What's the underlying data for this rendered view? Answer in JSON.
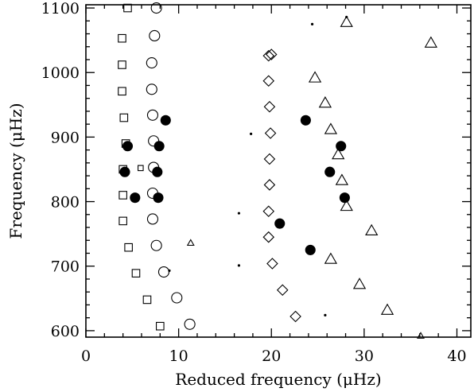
{
  "chart_data": {
    "type": "scatter",
    "title": "",
    "xlabel": "Reduced frequency (μHz)",
    "ylabel": "Frequency (μHz)",
    "xlim": [
      0,
      41.5
    ],
    "ylim": [
      590,
      1105
    ],
    "xticks": [
      0,
      10,
      20,
      30,
      40
    ],
    "yticks": [
      600,
      700,
      800,
      900,
      1000,
      1100
    ],
    "xtick_labels": [
      "0",
      "10",
      "20",
      "30",
      "40"
    ],
    "ytick_labels": [
      "600",
      "700",
      "800",
      "900",
      "1000",
      "1100"
    ],
    "grid": false,
    "legend": "none",
    "series": [
      {
        "marker": "square-open",
        "points": [
          [
            4.5,
            1100
          ],
          [
            3.9,
            1053
          ],
          [
            3.9,
            1012
          ],
          [
            3.9,
            971
          ],
          [
            4.1,
            930
          ],
          [
            4.3,
            890
          ],
          [
            4.0,
            850
          ],
          [
            4.0,
            810
          ],
          [
            4.0,
            770
          ],
          [
            4.6,
            729
          ],
          [
            5.4,
            689
          ],
          [
            6.6,
            648
          ],
          [
            8.0,
            607
          ]
        ]
      },
      {
        "marker": "square-open-small",
        "points": [
          [
            5.9,
            852
          ]
        ]
      },
      {
        "marker": "circle-open",
        "points": [
          [
            7.6,
            1100
          ],
          [
            7.4,
            1057
          ],
          [
            7.1,
            1015
          ],
          [
            7.1,
            974
          ],
          [
            7.2,
            934
          ],
          [
            7.3,
            894
          ],
          [
            7.3,
            853
          ],
          [
            7.2,
            813
          ],
          [
            7.2,
            773
          ],
          [
            7.6,
            732
          ],
          [
            8.4,
            691
          ],
          [
            9.8,
            651
          ],
          [
            11.2,
            610
          ]
        ]
      },
      {
        "marker": "circle-filled",
        "points": [
          [
            8.6,
            926
          ],
          [
            4.5,
            886
          ],
          [
            7.9,
            886
          ],
          [
            4.2,
            846
          ],
          [
            7.7,
            846
          ],
          [
            5.3,
            806
          ],
          [
            7.8,
            806
          ],
          [
            23.7,
            926
          ],
          [
            27.5,
            886
          ],
          [
            26.3,
            846
          ],
          [
            27.9,
            806
          ],
          [
            20.9,
            766
          ],
          [
            24.2,
            725
          ]
        ]
      },
      {
        "marker": "diamond-open",
        "points": [
          [
            20.0,
            1028
          ],
          [
            19.7,
            1026
          ],
          [
            19.7,
            987
          ],
          [
            19.8,
            947
          ],
          [
            19.9,
            906
          ],
          [
            19.8,
            866
          ],
          [
            19.8,
            826
          ],
          [
            19.7,
            785
          ],
          [
            19.7,
            745
          ],
          [
            20.1,
            704
          ],
          [
            21.2,
            663
          ],
          [
            22.6,
            622
          ]
        ]
      },
      {
        "marker": "triangle-open",
        "points": [
          [
            28.1,
            1078
          ],
          [
            24.7,
            992
          ],
          [
            25.8,
            953
          ],
          [
            26.4,
            912
          ],
          [
            27.2,
            873
          ],
          [
            27.6,
            833
          ],
          [
            28.1,
            793
          ],
          [
            30.8,
            755
          ],
          [
            26.4,
            711
          ],
          [
            29.5,
            672
          ],
          [
            32.5,
            632
          ],
          [
            37.2,
            1046
          ]
        ]
      },
      {
        "marker": "triangle-open-small",
        "points": [
          [
            11.3,
            736
          ],
          [
            36.1,
            592
          ]
        ]
      },
      {
        "marker": "dot-small",
        "points": [
          [
            24.4,
            1075
          ],
          [
            28.1,
            1086
          ],
          [
            17.8,
            905
          ],
          [
            16.5,
            782
          ],
          [
            16.5,
            701
          ],
          [
            9.0,
            693
          ],
          [
            25.8,
            624
          ]
        ]
      }
    ]
  }
}
